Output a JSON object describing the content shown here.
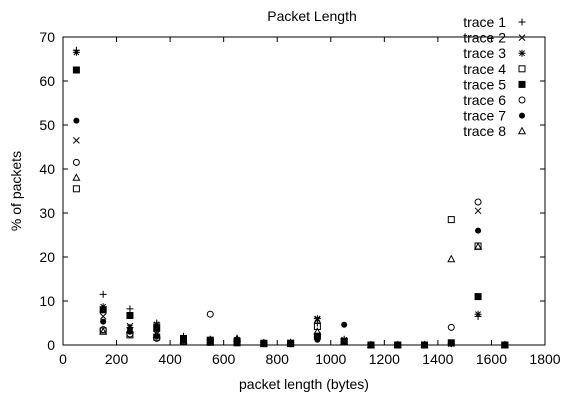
{
  "chart_data": {
    "type": "scatter",
    "title": "Packet Length",
    "xlabel": "packet length (bytes)",
    "ylabel": "% of packets",
    "xlim": [
      0,
      1800
    ],
    "ylim": [
      0,
      70
    ],
    "x_ticks": [
      0,
      200,
      400,
      600,
      800,
      1000,
      1200,
      1400,
      1600,
      1800
    ],
    "y_ticks": [
      0,
      10,
      20,
      30,
      40,
      50,
      60,
      70
    ],
    "legend_position": "top-right",
    "grid": false,
    "series": [
      {
        "name": "trace 1",
        "marker": "plus",
        "x": [
          50,
          150,
          250,
          350,
          450,
          550,
          650,
          750,
          850,
          950,
          1050,
          1150,
          1250,
          1350,
          1450,
          1550,
          1650
        ],
        "y": [
          67,
          11.5,
          8.2,
          5.0,
          2.0,
          1.3,
          1.0,
          0.5,
          0.5,
          5.0,
          1.3,
          0,
          0,
          0,
          0.3,
          6.5,
          0
        ]
      },
      {
        "name": "trace 2",
        "marker": "cross",
        "x": [
          50,
          150,
          250,
          350,
          450,
          550,
          650,
          750,
          850,
          950,
          1050,
          1150,
          1250,
          1350,
          1450,
          1550,
          1650
        ],
        "y": [
          46.5,
          6.5,
          4.3,
          2.5,
          1.0,
          0.8,
          0.7,
          0.4,
          0.5,
          5.8,
          1.0,
          0,
          0,
          0,
          0.3,
          30.5,
          0
        ]
      },
      {
        "name": "trace 3",
        "marker": "star",
        "x": [
          50,
          150,
          250,
          350,
          450,
          550,
          650,
          750,
          850,
          950,
          1050,
          1150,
          1250,
          1350,
          1450,
          1550,
          1650
        ],
        "y": [
          66.5,
          8.7,
          4.0,
          4.7,
          1.5,
          1.2,
          1.2,
          0.5,
          0.5,
          6.0,
          1.2,
          0,
          0,
          0,
          0.3,
          7.0,
          0
        ]
      },
      {
        "name": "trace 4",
        "marker": "square-open",
        "x": [
          50,
          150,
          250,
          350,
          450,
          550,
          650,
          750,
          850,
          950,
          1050,
          1150,
          1250,
          1350,
          1450,
          1550,
          1650
        ],
        "y": [
          35.5,
          3.2,
          2.3,
          1.8,
          0.8,
          0.6,
          0.5,
          0.3,
          0.3,
          4.2,
          0.8,
          0,
          0,
          0,
          28.5,
          22.5,
          0
        ]
      },
      {
        "name": "trace 5",
        "marker": "square-filled",
        "x": [
          50,
          150,
          250,
          350,
          450,
          550,
          650,
          750,
          850,
          950,
          1050,
          1150,
          1250,
          1350,
          1450,
          1550,
          1650
        ],
        "y": [
          62.5,
          8.0,
          6.7,
          3.8,
          1.5,
          1.1,
          0.9,
          0.4,
          0.4,
          2.0,
          0.8,
          0,
          0,
          0,
          0.5,
          11.0,
          0
        ]
      },
      {
        "name": "trace 6",
        "marker": "circle-open",
        "x": [
          50,
          150,
          250,
          350,
          450,
          550,
          650,
          750,
          850,
          950,
          1050,
          1150,
          1250,
          1350,
          1450,
          1550,
          1650
        ],
        "y": [
          41.5,
          3.5,
          2.5,
          1.5,
          0.7,
          7.0,
          0.6,
          0.3,
          0.3,
          2.0,
          0.7,
          0,
          0,
          0,
          4.0,
          32.5,
          0
        ]
      },
      {
        "name": "trace 7",
        "marker": "circle-filled",
        "x": [
          50,
          150,
          250,
          350,
          450,
          550,
          650,
          750,
          850,
          950,
          1050,
          1150,
          1250,
          1350,
          1450,
          1550,
          1650
        ],
        "y": [
          51.0,
          5.3,
          3.0,
          2.0,
          0.9,
          0.8,
          0.6,
          0.3,
          0.3,
          1.2,
          4.6,
          0,
          0,
          0,
          0.3,
          26.0,
          0
        ]
      },
      {
        "name": "trace 8",
        "marker": "triangle-open",
        "x": [
          50,
          150,
          250,
          350,
          450,
          550,
          650,
          750,
          850,
          950,
          1050,
          1150,
          1250,
          1350,
          1450,
          1550,
          1650
        ],
        "y": [
          38.0,
          3.0,
          3.5,
          2.3,
          1.0,
          0.7,
          1.4,
          0.3,
          0.5,
          3.0,
          0.8,
          0,
          0,
          0,
          19.5,
          22.3,
          0
        ]
      }
    ]
  }
}
